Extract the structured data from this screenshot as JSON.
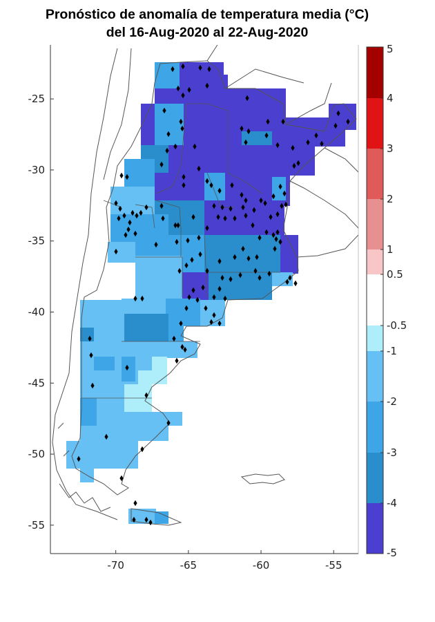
{
  "title": {
    "line1": "Pronóstico de anomalía de temperatura media (°C)",
    "line2": "del 16-Aug-2020 al 22-Aug-2020"
  },
  "map": {
    "region": "Argentina",
    "lon_range": [
      -74.5,
      -53.3
    ],
    "lat_range": [
      -57.0,
      -21.2
    ],
    "x_ticks": [
      {
        "v": -70,
        "label": "-70"
      },
      {
        "v": -65,
        "label": "-65"
      },
      {
        "v": -60,
        "label": "-60"
      },
      {
        "v": -55,
        "label": "-55"
      }
    ],
    "y_ticks": [
      {
        "v": -25,
        "label": "-25"
      },
      {
        "v": -30,
        "label": "-30"
      },
      {
        "v": -35,
        "label": "-35"
      },
      {
        "v": -40,
        "label": "-40"
      },
      {
        "v": -45,
        "label": "-45"
      },
      {
        "v": -50,
        "label": "-50"
      },
      {
        "v": -55,
        "label": "-55"
      }
    ],
    "station_marker": "diamond",
    "station_color": "#000000",
    "border_color": "#555555"
  },
  "colorbar": {
    "ticks": [
      "5",
      "4",
      "3",
      "2",
      "1",
      "0.5",
      "-0.5",
      "-1",
      "-2",
      "-3",
      "-4",
      "-5"
    ],
    "bins": [
      {
        "from": 4,
        "to": 5,
        "color": "#a50000"
      },
      {
        "from": 3,
        "to": 4,
        "color": "#e01414"
      },
      {
        "from": 2,
        "to": 3,
        "color": "#e05a5a"
      },
      {
        "from": 1,
        "to": 2,
        "color": "#e89090"
      },
      {
        "from": 0.5,
        "to": 1,
        "color": "#f8c6c6"
      },
      {
        "from": -0.5,
        "to": 0.5,
        "color": "#ffffff"
      },
      {
        "from": -1,
        "to": -0.5,
        "color": "#aeeefa"
      },
      {
        "from": -2,
        "to": -1,
        "color": "#66c0f4"
      },
      {
        "from": -3,
        "to": -2,
        "color": "#3ea6e6"
      },
      {
        "from": -4,
        "to": -3,
        "color": "#2a8ecc"
      },
      {
        "from": -5,
        "to": -4,
        "color": "#4b3fcf"
      }
    ]
  }
}
